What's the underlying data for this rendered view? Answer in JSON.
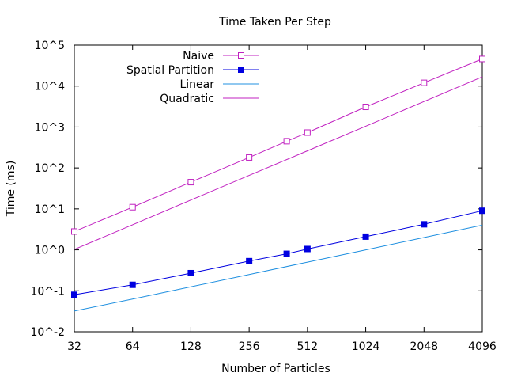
{
  "chart_data": {
    "type": "line",
    "title": "Time Taken Per Step",
    "xlabel": "Number of Particles",
    "ylabel": "Time (ms)",
    "x_scale": "log2",
    "y_scale": "log10",
    "xlim": [
      32,
      4096
    ],
    "ylim": [
      0.01,
      100000
    ],
    "x_ticks": [
      32,
      64,
      128,
      256,
      512,
      1024,
      2048,
      4096
    ],
    "x_tick_labels": [
      "32",
      "64",
      "128",
      "256",
      "512",
      "1024",
      "2048",
      "4096"
    ],
    "y_ticks": [
      0.01,
      0.1,
      1,
      10,
      100,
      1000,
      10000,
      100000
    ],
    "y_tick_labels": [
      "10^-2",
      "10^-1",
      "10^0",
      "10^1",
      "10^2",
      "10^3",
      "10^4",
      "10^5"
    ],
    "grid": false,
    "legend_position": "top-left",
    "series": [
      {
        "name": "Naive",
        "color": "#c020c0",
        "marker": "open-square",
        "x": [
          32,
          64,
          128,
          256,
          400,
          512,
          1024,
          2048,
          4096
        ],
        "y": [
          2.8,
          11,
          45,
          180,
          450,
          730,
          3100,
          12000,
          46000
        ]
      },
      {
        "name": "Spatial Partition",
        "color": "#0000e0",
        "marker": "filled-square",
        "x": [
          32,
          64,
          128,
          256,
          400,
          512,
          1024,
          2048,
          4096
        ],
        "y": [
          0.08,
          0.14,
          0.27,
          0.53,
          0.8,
          1.05,
          2.1,
          4.2,
          9
        ]
      },
      {
        "name": "Linear",
        "color": "#2090e0",
        "marker": "none",
        "x": [
          32,
          64,
          128,
          256,
          512,
          1024,
          2048,
          4096
        ],
        "y": [
          0.032,
          0.063,
          0.125,
          0.25,
          0.5,
          1,
          2,
          4
        ]
      },
      {
        "name": "Quadratic",
        "color": "#c020c0",
        "marker": "none",
        "x": [
          32,
          64,
          128,
          256,
          512,
          1024,
          2048,
          4096
        ],
        "y": [
          1.02,
          4.1,
          16.4,
          65.5,
          262,
          1049,
          4194,
          16777
        ]
      }
    ]
  }
}
